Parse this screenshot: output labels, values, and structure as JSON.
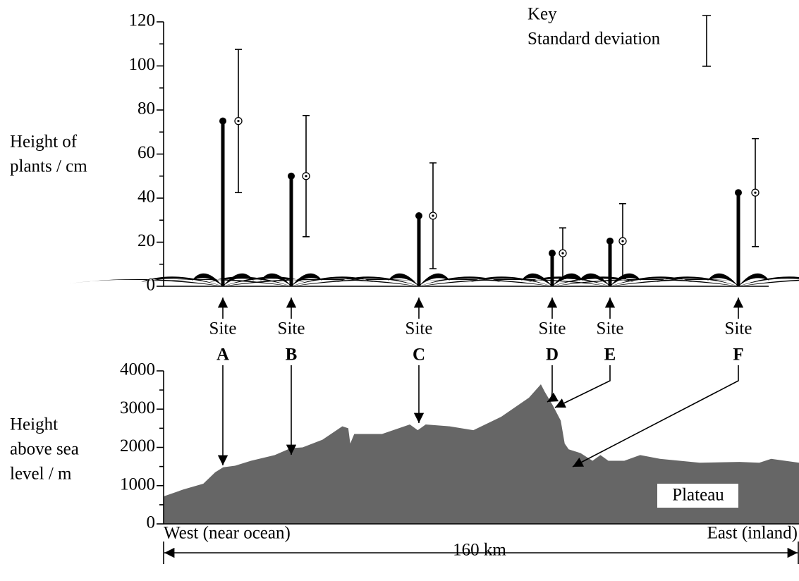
{
  "chart_data": [
    {
      "type": "errorbar",
      "y_label": [
        "Height of",
        "plants / cm"
      ],
      "key_title": "Key",
      "key_label": "Standard deviation",
      "site_label": "Site",
      "categories": [
        "A",
        "B",
        "C",
        "D",
        "E",
        "F"
      ],
      "values": [
        75,
        50,
        32,
        15,
        20.5,
        42.5
      ],
      "sd": [
        32.5,
        27.5,
        24,
        11.5,
        17,
        24.5
      ],
      "ylim": [
        0,
        120
      ],
      "yticks": [
        0,
        20,
        40,
        60,
        80,
        100,
        120
      ],
      "minor_yticks": [
        10,
        30,
        50,
        70,
        90,
        110
      ]
    },
    {
      "type": "area",
      "y_label": [
        "Height",
        "above sea",
        "level / m"
      ],
      "x_label_left": "West (near ocean)",
      "x_label_right": "East (inland)",
      "span_label": "160 km",
      "annotation": "Plateau",
      "color": "#666666",
      "x": [
        0,
        5,
        10,
        13,
        15,
        18,
        22,
        28,
        32,
        35,
        40,
        45,
        46.5,
        47,
        48,
        55,
        62,
        64,
        66,
        72,
        78,
        85,
        92,
        95,
        96,
        98,
        100,
        101,
        102,
        105,
        108,
        110,
        112,
        116,
        120,
        125,
        135,
        145,
        150,
        153,
        160
      ],
      "values": [
        720,
        900,
        1050,
        1350,
        1480,
        1520,
        1650,
        1800,
        1980,
        2000,
        2200,
        2550,
        2500,
        2100,
        2350,
        2350,
        2600,
        2450,
        2600,
        2550,
        2450,
        2800,
        3300,
        3650,
        3450,
        3100,
        2700,
        2100,
        1950,
        1850,
        1650,
        1800,
        1650,
        1650,
        1800,
        1700,
        1600,
        1620,
        1600,
        1700,
        1600
      ],
      "xlim": [
        0,
        160
      ],
      "ylim": [
        0,
        4000
      ],
      "yticks": [
        0,
        1000,
        2000,
        3000,
        4000
      ],
      "minor_yticks": [
        500,
        1500,
        2500,
        3500
      ]
    }
  ]
}
